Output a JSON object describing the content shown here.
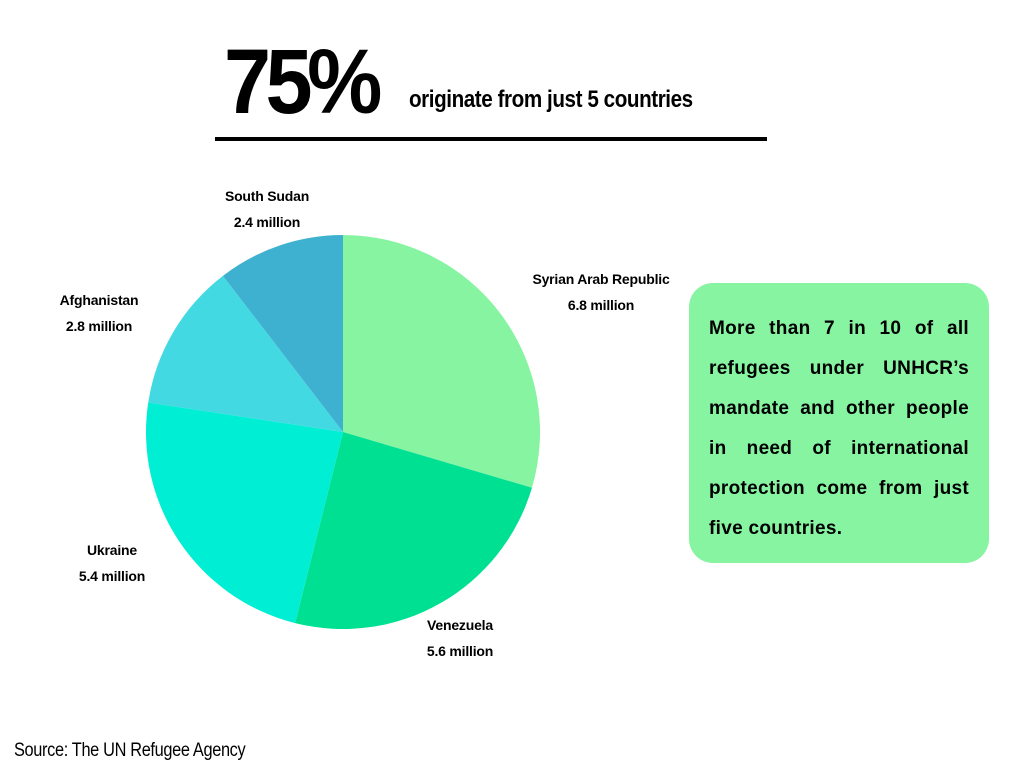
{
  "headline": {
    "percent": "75%",
    "text": "originate from just 5 countries"
  },
  "chart_data": {
    "type": "pie",
    "title": "",
    "slices": [
      {
        "label": "Syrian Arab Republic",
        "value_label": "6.8 million",
        "value": 6.8,
        "color": "#86f4a1"
      },
      {
        "label": "Venezuela",
        "value_label": "5.6 million",
        "value": 5.6,
        "color": "#00e092"
      },
      {
        "label": "Ukraine",
        "value_label": "5.4 million",
        "value": 5.4,
        "color": "#00eed4"
      },
      {
        "label": "Afghanistan",
        "value_label": "2.8 million",
        "value": 2.8,
        "color": "#42d9e2"
      },
      {
        "label": "South Sudan",
        "value_label": "2.4 million",
        "value": 2.4,
        "color": "#3fb1d0"
      }
    ],
    "start_angle": "12 o'clock",
    "direction": "clockwise",
    "legend": "none"
  },
  "callout": {
    "text": "More than 7 in 10 of all refugees under UNHCR’s mandate and other people in need of international protection come from just five countries.",
    "background": "#86f4a1"
  },
  "source": "Source: The UN Refugee Agency"
}
